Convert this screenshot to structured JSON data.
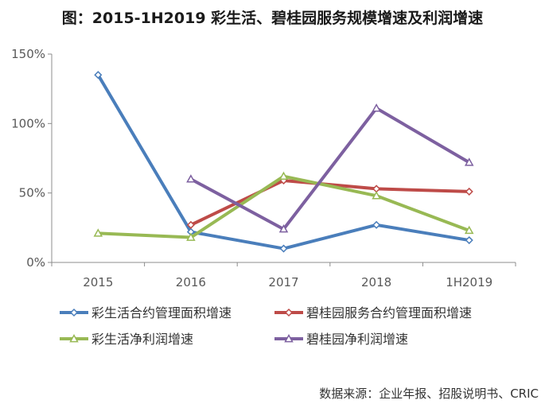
{
  "chart_data": {
    "type": "line",
    "title": "图：2015-1H2019 彩生活、碧桂园服务规模增速及利润增速",
    "categories": [
      "2015",
      "2016",
      "2017",
      "2018",
      "1H2019"
    ],
    "y_ticks": [
      "0%",
      "50%",
      "100%",
      "150%"
    ],
    "ylim": [
      0,
      150
    ],
    "grid": "none",
    "legend_position": "bottom",
    "series": [
      {
        "name": "彩生活合约管理面积增速",
        "color": "#4A7EBB",
        "marker": "diamond",
        "values": [
          135,
          22,
          10,
          27,
          16
        ]
      },
      {
        "name": "碧桂园服务合约管理面积增速",
        "color": "#BE4B48",
        "marker": "diamond",
        "values": [
          null,
          27,
          59,
          53,
          51
        ]
      },
      {
        "name": "彩生活净利润增速",
        "color": "#98B954",
        "marker": "triangle",
        "values": [
          21,
          18,
          62,
          48,
          23
        ]
      },
      {
        "name": "碧桂园净利润增速",
        "color": "#7D60A0",
        "marker": "triangle",
        "values": [
          null,
          60,
          24,
          111,
          72
        ]
      }
    ]
  },
  "source": "数据来源：企业年报、招股说明书、CRIC"
}
